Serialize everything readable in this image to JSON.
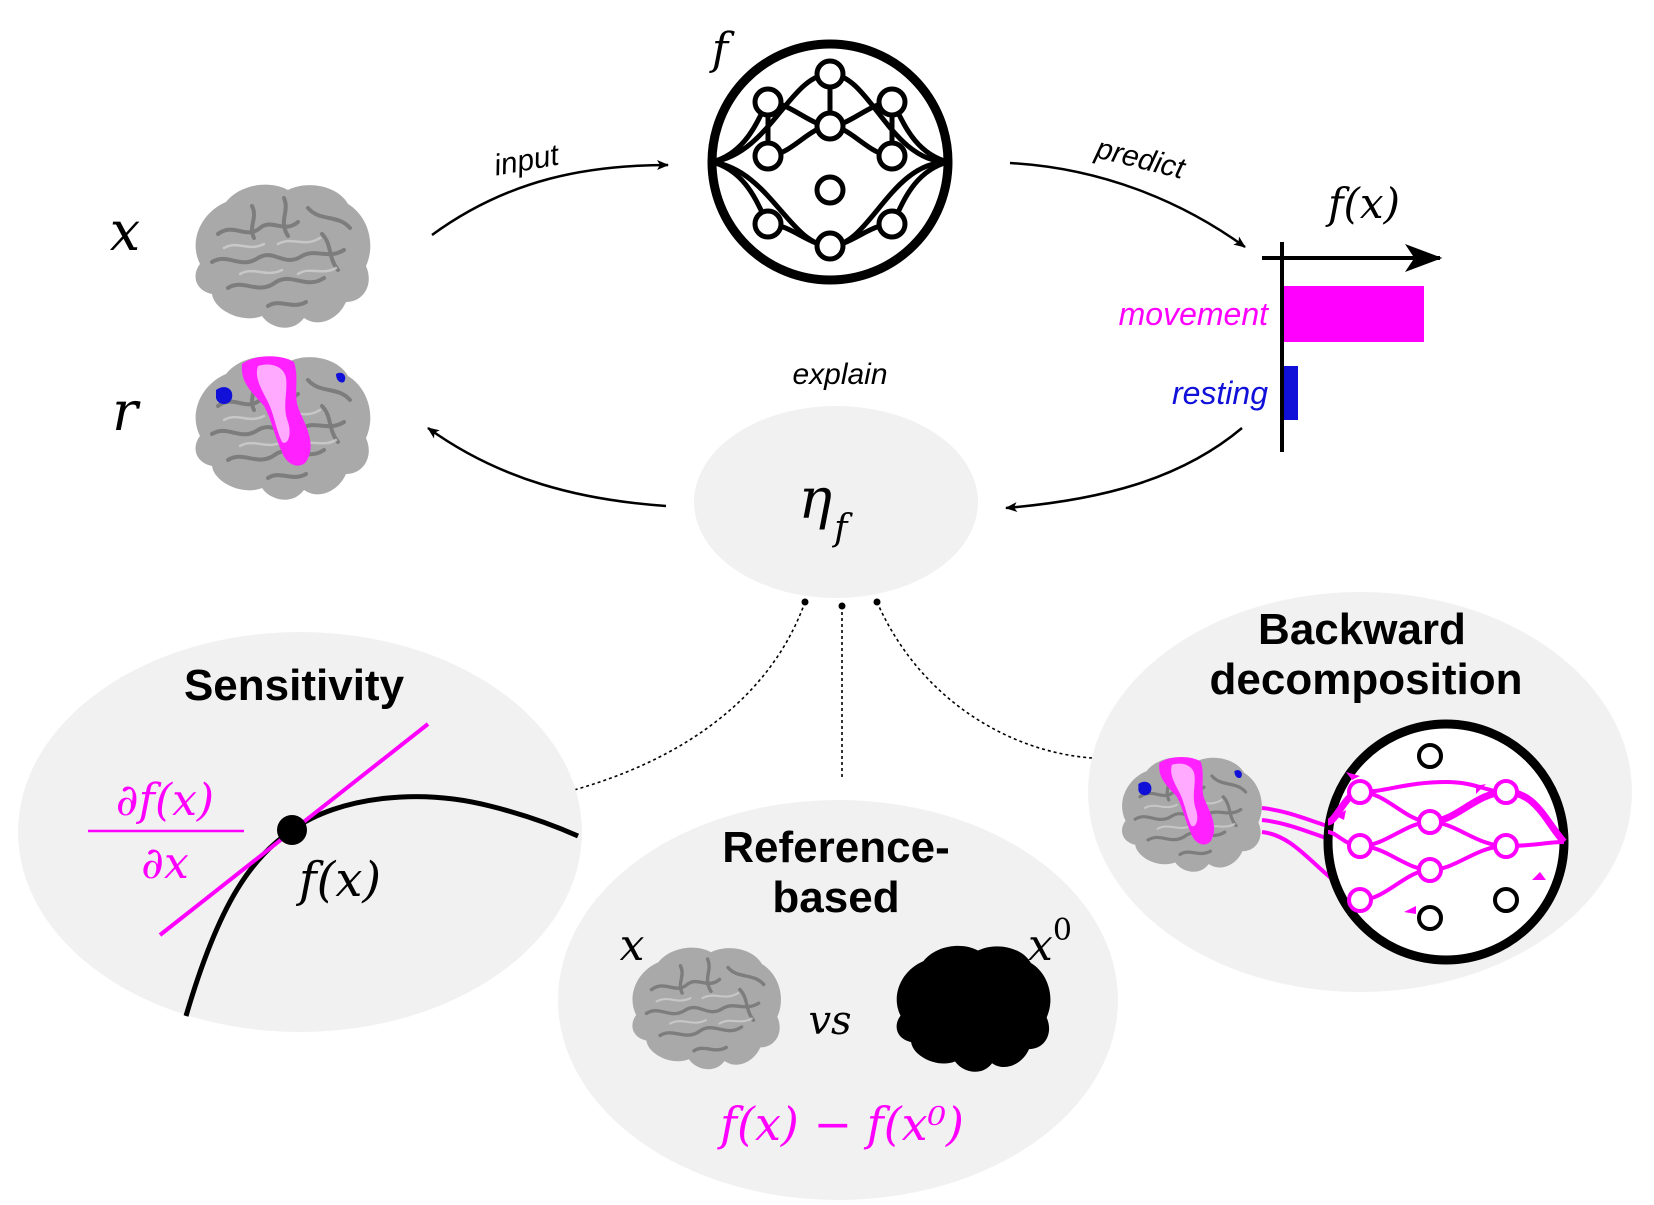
{
  "colors": {
    "magenta": "#ff00ff",
    "blue": "#1010d8",
    "bubble": "#f1f1f1",
    "ink": "#000000",
    "brain": "#a9a9a9",
    "brain_fold": "#7a7a7a"
  },
  "icons": {
    "network": "network-icon",
    "brain": "brain-icon",
    "brain_mask": "brain-silhouette-icon"
  },
  "top": {
    "x_symbol": "x",
    "r_symbol": "r",
    "f_symbol": "f",
    "input_label": "input",
    "predict_label": "predict",
    "explain_label": "explain",
    "eta_symbol": "η",
    "eta_sub": "f"
  },
  "prediction": {
    "axis_label": "f(x)",
    "bars": [
      {
        "label": "movement",
        "value": 1.0,
        "color": "#ff00ff"
      },
      {
        "label": "resting",
        "value": 0.1,
        "color": "#1010d8"
      }
    ]
  },
  "sensitivity": {
    "title": "Sensitivity",
    "derivative_numerator": "∂f(x)",
    "derivative_denominator": "∂x",
    "point_label": "f(x)"
  },
  "reference": {
    "title_line1": "Reference-",
    "title_line2": "based",
    "x_symbol": "x",
    "x0_symbol": "x",
    "x0_sup": "0",
    "vs_label": "vs",
    "formula": "f(x) − f(x⁰)"
  },
  "backward": {
    "title_line1": "Backward",
    "title_line2": "decomposition"
  }
}
